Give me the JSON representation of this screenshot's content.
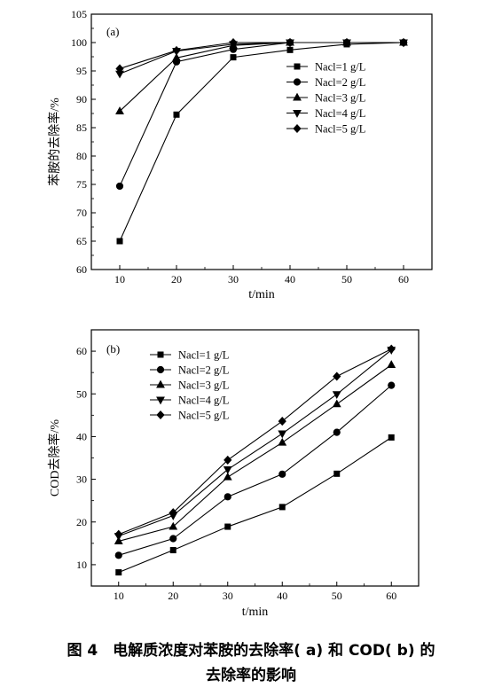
{
  "chart_data": [
    {
      "type": "line",
      "panel_label": "(a)",
      "xlabel": "t/min",
      "ylabel": "苯胺的去除率/%",
      "xlim": [
        5,
        65
      ],
      "ylim": [
        60,
        105
      ],
      "xticks": [
        10,
        20,
        30,
        40,
        50,
        60
      ],
      "yticks": [
        60,
        65,
        70,
        75,
        80,
        85,
        90,
        95,
        100,
        105
      ],
      "legend_position": "right",
      "x": [
        10,
        20,
        30,
        40,
        50,
        60
      ],
      "series": [
        {
          "name": "Nacl=1 g/L",
          "marker": "square",
          "values": [
            65.0,
            87.3,
            97.4,
            98.7,
            99.7,
            100.0
          ]
        },
        {
          "name": "Nacl=2 g/L",
          "marker": "circle",
          "values": [
            74.7,
            96.6,
            98.8,
            100.0,
            100.0,
            100.0
          ]
        },
        {
          "name": "Nacl=3 g/L",
          "marker": "triangle-up",
          "values": [
            87.9,
            97.3,
            99.5,
            100.0,
            100.0,
            100.0
          ]
        },
        {
          "name": "Nacl=4 g/L",
          "marker": "triangle-down",
          "values": [
            94.5,
            98.5,
            99.7,
            100.0,
            100.0,
            100.0
          ]
        },
        {
          "name": "Nacl=5 g/L",
          "marker": "diamond",
          "values": [
            95.4,
            98.6,
            100.0,
            100.0,
            100.0,
            100.0
          ]
        }
      ]
    },
    {
      "type": "line",
      "panel_label": "(b)",
      "xlabel": "t/min",
      "ylabel": "COD去除率/%",
      "xlim": [
        5,
        65
      ],
      "ylim": [
        5,
        65
      ],
      "xticks": [
        10,
        20,
        30,
        40,
        50,
        60
      ],
      "yticks": [
        10,
        20,
        30,
        40,
        50,
        60
      ],
      "legend_position": "top-left",
      "x": [
        10,
        20,
        30,
        40,
        50,
        60
      ],
      "series": [
        {
          "name": "Nacl=1 g/L",
          "marker": "square",
          "values": [
            8.2,
            13.4,
            18.9,
            23.5,
            31.3,
            39.8
          ]
        },
        {
          "name": "Nacl=2 g/L",
          "marker": "circle",
          "values": [
            12.2,
            16.1,
            25.9,
            31.2,
            41.0,
            52.0
          ]
        },
        {
          "name": "Nacl=3 g/L",
          "marker": "triangle-up",
          "values": [
            15.5,
            18.9,
            30.5,
            38.6,
            47.6,
            56.8
          ]
        },
        {
          "name": "Nacl=4 g/L",
          "marker": "triangle-down",
          "values": [
            16.7,
            21.5,
            32.3,
            40.7,
            49.9,
            60.3
          ]
        },
        {
          "name": "Nacl=5 g/L",
          "marker": "diamond",
          "values": [
            17.1,
            22.2,
            34.5,
            43.6,
            54.1,
            60.5
          ]
        }
      ]
    }
  ],
  "caption": {
    "line1": "图 4　电解质浓度对苯胺的去除率( a) 和 COD( b) 的",
    "line2": "去除率的影响"
  }
}
